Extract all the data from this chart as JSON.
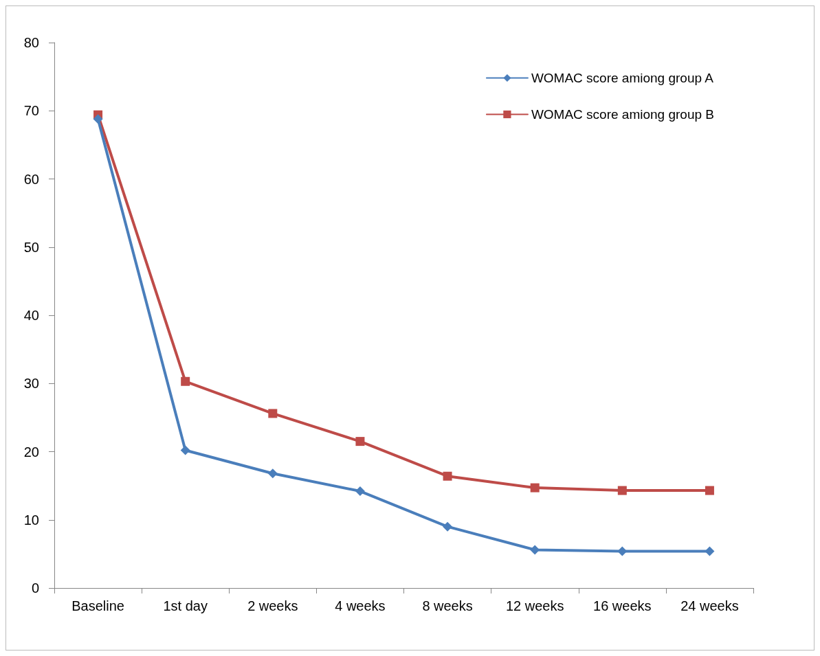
{
  "chart_data": {
    "type": "line",
    "categories": [
      "Baseline",
      "1st day",
      "2 weeks",
      "4 weeks",
      "8 weeks",
      "12 weeks",
      "16 weeks",
      "24 weeks"
    ],
    "series": [
      {
        "name": "WOMAC score amiong group A",
        "color": "#4a7ebb",
        "marker": "diamond",
        "values": [
          68.8,
          20.2,
          16.8,
          14.2,
          9.0,
          5.6,
          5.4,
          5.4
        ]
      },
      {
        "name": "WOMAC score amiong group B",
        "color": "#be4b48",
        "marker": "square",
        "values": [
          69.4,
          30.3,
          25.6,
          21.5,
          16.4,
          14.7,
          14.3,
          14.3
        ]
      }
    ],
    "ylim": [
      0,
      80
    ],
    "yticks": [
      0,
      10,
      20,
      30,
      40,
      50,
      60,
      70,
      80
    ],
    "grid": false,
    "legend": "top right",
    "line_style": "solid"
  }
}
